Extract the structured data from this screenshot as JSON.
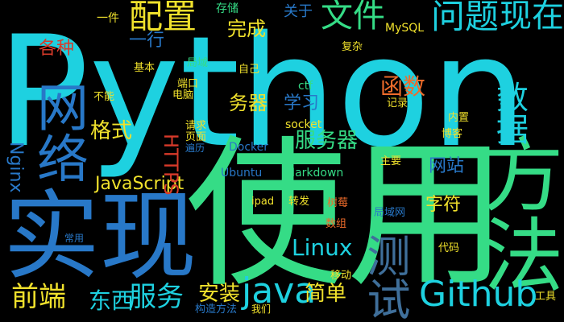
{
  "colors": {
    "background": "#000000",
    "cyan": "#1ed1e0",
    "green": "#35dc86",
    "blue": "#2878c8",
    "yellow": "#f0e12c",
    "orange": "#ef6c2b",
    "red": "#d83a2a",
    "slate": "#3f6f9a",
    "teal": "#2aa0b3",
    "lime": "#a8e032"
  },
  "words": [
    "Python",
    "使用",
    "实现",
    "方法",
    "Github",
    "网络",
    "java",
    "测试",
    "文件",
    "配置",
    "问题",
    "现在",
    "数据",
    "服务",
    "前端",
    "东西",
    "Linux",
    "函数",
    "格式",
    "服务器",
    "JavaScript",
    "Nginx",
    "HTTPS",
    "安装",
    "简单",
    "一行",
    "完成",
    "关于",
    "各种",
    "学习",
    "务器",
    "字符",
    "网站",
    "Markdown",
    "Docker",
    "Ubuntu",
    "socket",
    "ctf",
    "MySQL",
    "存储",
    "一件",
    "基本",
    "局域",
    "自己",
    "复杂",
    "请求",
    "页面",
    "遍历",
    "端口",
    "电脑",
    "不能",
    "主要",
    "转发",
    "树莓",
    "局域网",
    "数组",
    "常用",
    "代码",
    "移动",
    "工具",
    "构造方法",
    "我们",
    "内置",
    "博客",
    "记录",
    "ipad"
  ]
}
